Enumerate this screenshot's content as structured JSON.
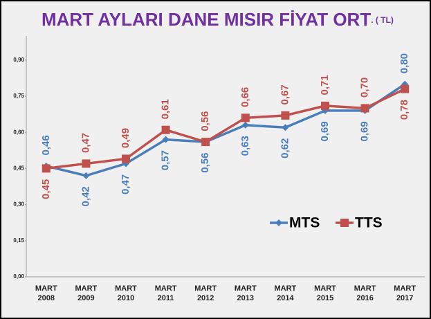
{
  "chart_data": {
    "type": "line",
    "title": "MART AYLARI DANE MISIR FİYAT ORT",
    "subtitle": ". ( TL)",
    "categories": [
      "MART 2008",
      "MART 2009",
      "MART 2010",
      "MART 2011",
      "MART 2012",
      "MART 2013",
      "MART 2014",
      "MART 2015",
      "MART 2016",
      "MART 2017"
    ],
    "series": [
      {
        "name": "MTS",
        "color": "#4a7ebb",
        "values": [
          0.46,
          0.42,
          0.47,
          0.57,
          0.56,
          0.63,
          0.62,
          0.69,
          0.69,
          0.8
        ],
        "value_labels": [
          "0,46",
          "0,42",
          "0,47",
          "0,57",
          "0,56",
          "0,63",
          "0,62",
          "0,69",
          "0,69",
          "0,80"
        ]
      },
      {
        "name": "TTS",
        "color": "#c0504d",
        "values": [
          0.45,
          0.47,
          0.49,
          0.61,
          0.56,
          0.66,
          0.67,
          0.71,
          0.7,
          0.78
        ],
        "value_labels": [
          "0,45",
          "0,47",
          "0,49",
          "0,61",
          "0,56",
          "0,66",
          "0,67",
          "0,71",
          "0,70",
          "0,78"
        ]
      }
    ],
    "ylim": [
      0,
      1
    ],
    "yticks": [
      {
        "value": 0,
        "label": "0,00"
      },
      {
        "value": 0.15,
        "label": "0,15"
      },
      {
        "value": 0.3,
        "label": "0,30"
      },
      {
        "value": 0.45,
        "label": "0,45"
      },
      {
        "value": 0.6,
        "label": "0,60"
      },
      {
        "value": 0.75,
        "label": "0,75"
      },
      {
        "value": 0.9,
        "label": "0,90"
      }
    ],
    "legend": "right"
  }
}
